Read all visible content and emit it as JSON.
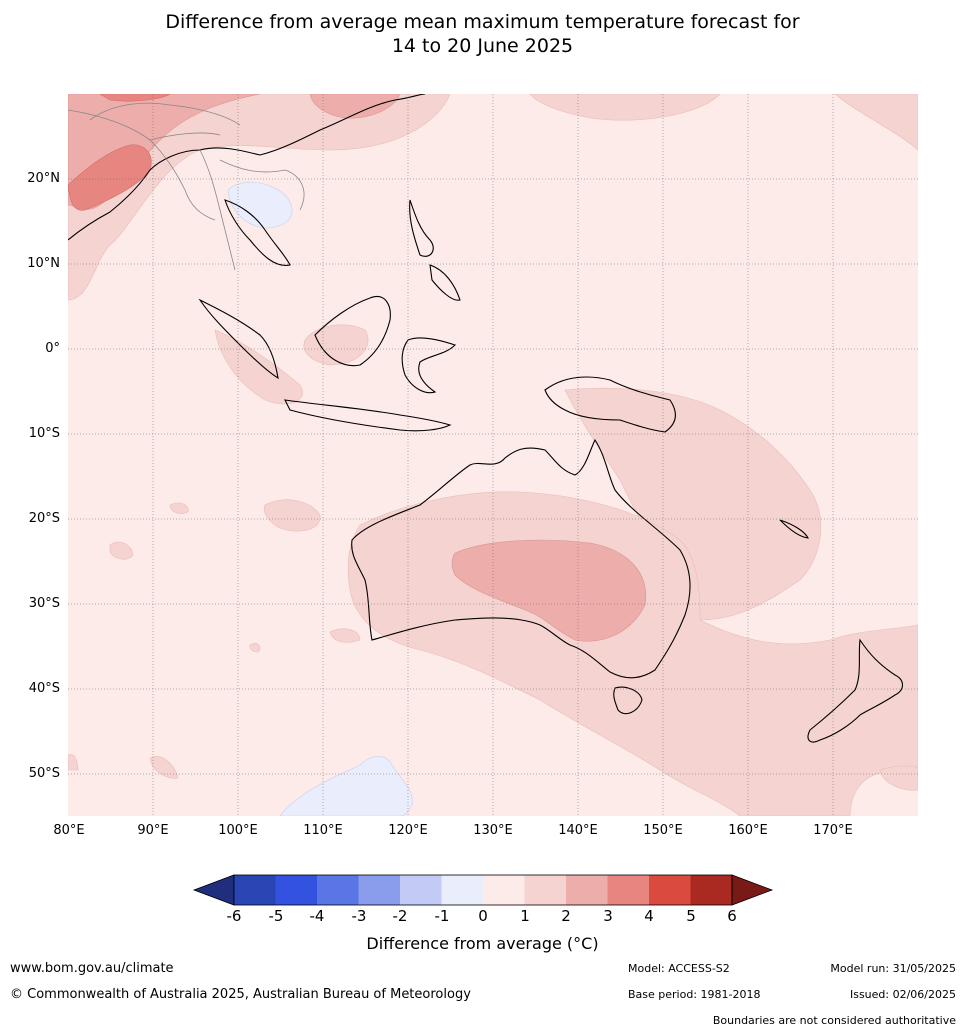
{
  "title_line1": "Difference from average mean maximum temperature forecast for",
  "title_line2": "14 to 20 June 2025",
  "lat_labels": [
    "20°N",
    "10°N",
    "0°",
    "10°S",
    "20°S",
    "30°S",
    "40°S",
    "50°S"
  ],
  "lon_labels": [
    "80°E",
    "90°E",
    "100°E",
    "110°E",
    "120°E",
    "130°E",
    "140°E",
    "150°E",
    "160°E",
    "170°E"
  ],
  "colorbar": {
    "ticks": [
      "-6",
      "-5",
      "-4",
      "-3",
      "-2",
      "-1",
      "0",
      "1",
      "2",
      "3",
      "4",
      "5",
      "6"
    ],
    "colors": [
      "#1f2f7e",
      "#2a45b4",
      "#3452e0",
      "#5a75e5",
      "#8a9cec",
      "#c2caf5",
      "#eaedfb",
      "#fcebe9",
      "#f5d3d0",
      "#edadaa",
      "#e78580",
      "#da4a3f",
      "#aa2a22",
      "#7a1a17"
    ],
    "label": "Difference from average (°C)"
  },
  "footer": {
    "website": "www.bom.gov.au/climate",
    "copyright": "© Commonwealth of Australia 2025, Australian Bureau of Meteorology",
    "model": "Model: ACCESS-S2",
    "base_period": "Base period: 1981-2018",
    "model_run": "Model run: 31/05/2025",
    "issued": "Issued: 02/06/2025",
    "disclaimer": "Boundaries are not considered authoritative"
  }
}
